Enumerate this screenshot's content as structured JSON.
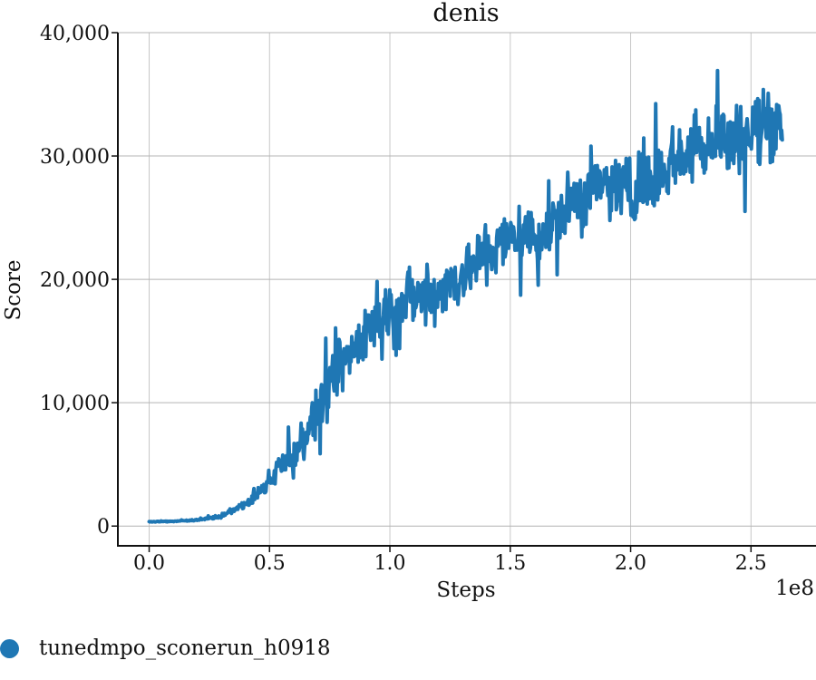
{
  "chart_data": {
    "type": "line",
    "title": "denis",
    "xlabel": "Steps",
    "ylabel": "Score",
    "x_offset_label": "1e8",
    "xlim": [
      -0.13,
      2.77
    ],
    "ylim": [
      -1600,
      40000
    ],
    "x_ticks": [
      0.0,
      0.5,
      1.0,
      1.5,
      2.0,
      2.5
    ],
    "x_tick_labels": [
      "0.0",
      "0.5",
      "1.0",
      "1.5",
      "2.0",
      "2.5"
    ],
    "y_ticks": [
      0,
      10000,
      20000,
      30000,
      40000
    ],
    "y_tick_labels": [
      "0",
      "10,000",
      "20,000",
      "30,000",
      "40,000"
    ],
    "grid": true,
    "legend_position": "bottom-left",
    "series": [
      {
        "name": "tunedmpo_sconerun_h0918",
        "color": "#1f77b4",
        "x_range": [
          0.0,
          2.63
        ],
        "trend": [
          [
            0.0,
            350
          ],
          [
            0.1,
            380
          ],
          [
            0.2,
            500
          ],
          [
            0.3,
            800
          ],
          [
            0.4,
            1800
          ],
          [
            0.5,
            3500
          ],
          [
            0.6,
            6000
          ],
          [
            0.7,
            9000
          ],
          [
            0.8,
            13000
          ],
          [
            0.9,
            16000
          ],
          [
            1.0,
            17500
          ],
          [
            1.1,
            18500
          ],
          [
            1.2,
            19000
          ],
          [
            1.3,
            20500
          ],
          [
            1.4,
            22000
          ],
          [
            1.5,
            23500
          ],
          [
            1.6,
            23500
          ],
          [
            1.7,
            25000
          ],
          [
            1.8,
            27000
          ],
          [
            1.9,
            27500
          ],
          [
            2.0,
            27500
          ],
          [
            2.1,
            28500
          ],
          [
            2.2,
            30000
          ],
          [
            2.3,
            31000
          ],
          [
            2.4,
            31500
          ],
          [
            2.5,
            32000
          ],
          [
            2.63,
            33000
          ]
        ],
        "noise": [
          [
            0.0,
            40
          ],
          [
            0.2,
            80
          ],
          [
            0.3,
            200
          ],
          [
            0.45,
            700
          ],
          [
            0.55,
            1500
          ],
          [
            0.65,
            2300
          ],
          [
            0.75,
            3200
          ],
          [
            0.9,
            3200
          ],
          [
            1.2,
            3300
          ],
          [
            1.6,
            3700
          ],
          [
            2.0,
            3800
          ],
          [
            2.63,
            4300
          ]
        ]
      }
    ]
  }
}
